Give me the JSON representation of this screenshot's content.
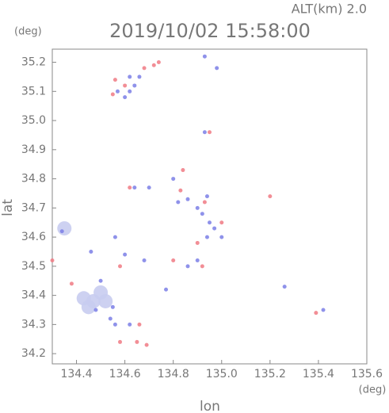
{
  "chart_data": {
    "type": "scatter",
    "title": "2019/10/02 15:58:00",
    "subtitle": "ALT(km) 2.0",
    "x_label": "lon",
    "y_label": "lat",
    "x_unit": "(deg)",
    "y_unit": "(deg)",
    "xlim": [
      134.3,
      135.6
    ],
    "ylim": [
      34.165,
      35.245
    ],
    "xticks": [
      134.4,
      134.6,
      134.8,
      {
        "value": 135,
        "label": "135.0"
      },
      135.2,
      135.4,
      135.6
    ],
    "yticks": [
      34.2,
      34.3,
      34.4,
      34.5,
      34.6,
      34.7,
      34.8,
      34.9,
      {
        "value": 35,
        "label": "35.0"
      },
      35.1,
      35.2
    ],
    "series": [
      {
        "color": "#c8ccf0",
        "x": [
          134.43,
          134.47,
          134.52,
          134.5,
          134.45,
          134.35
        ],
        "values": [
          34.39,
          34.38,
          34.38,
          34.41,
          34.36,
          34.63
        ]
      },
      {
        "color": "#7b7fe6",
        "x": [
          134.57,
          134.6,
          134.62,
          134.64,
          134.66,
          134.62,
          134.93,
          134.98,
          134.93,
          134.8,
          134.82,
          134.86,
          134.9,
          134.92,
          134.95,
          134.97,
          135.0,
          134.94,
          134.86,
          134.9,
          134.64,
          134.7,
          134.56,
          134.6,
          134.68,
          134.34,
          134.46,
          134.5,
          134.48,
          134.54,
          134.56,
          134.77,
          135.26,
          135.42,
          134.62,
          134.94,
          134.55
        ],
        "values": [
          35.1,
          35.08,
          35.1,
          35.12,
          35.15,
          35.15,
          35.22,
          35.18,
          34.96,
          34.8,
          34.72,
          34.73,
          34.7,
          34.68,
          34.65,
          34.63,
          34.6,
          34.6,
          34.5,
          34.52,
          34.77,
          34.77,
          34.6,
          34.54,
          34.52,
          34.62,
          34.55,
          34.45,
          34.35,
          34.32,
          34.3,
          34.42,
          34.43,
          34.35,
          34.3,
          34.74,
          34.36
        ]
      },
      {
        "color": "#f07a84",
        "x": [
          134.55,
          134.56,
          134.6,
          134.72,
          134.68,
          134.74,
          134.95,
          134.84,
          134.83,
          134.93,
          135.0,
          135.2,
          134.8,
          134.92,
          134.3,
          134.58,
          134.65,
          134.69,
          134.66,
          134.38,
          135.39,
          134.58,
          134.62,
          134.9
        ],
        "values": [
          35.09,
          35.14,
          35.12,
          35.19,
          35.18,
          35.2,
          34.96,
          34.83,
          34.76,
          34.72,
          34.65,
          34.74,
          34.52,
          34.5,
          34.52,
          34.24,
          34.24,
          34.23,
          34.3,
          34.44,
          34.34,
          34.5,
          34.77,
          34.58
        ]
      }
    ]
  }
}
